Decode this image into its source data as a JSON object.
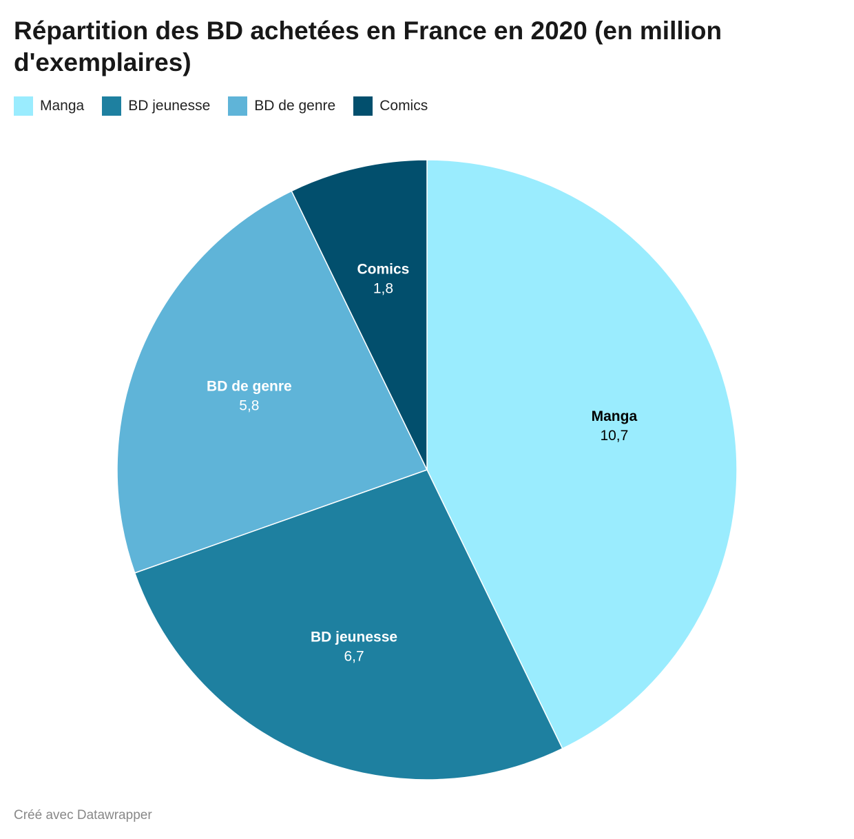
{
  "chart_data": {
    "type": "pie",
    "title": "Répartition des BD achetées en France en 2020 (en million d'exemplaires)",
    "categories": [
      "Manga",
      "BD jeunesse",
      "BD de genre",
      "Comics"
    ],
    "values": [
      10.7,
      6.7,
      5.8,
      1.8
    ],
    "value_labels": [
      "10,7",
      "6,7",
      "5,8",
      "1,8"
    ],
    "colors": [
      "#9aecfe",
      "#1e80a0",
      "#5fb4d8",
      "#024f6d"
    ],
    "label_colors": [
      "#000000",
      "#ffffff",
      "#ffffff",
      "#ffffff"
    ],
    "legend": "top-left"
  },
  "footer": "Créé avec Datawrapper"
}
